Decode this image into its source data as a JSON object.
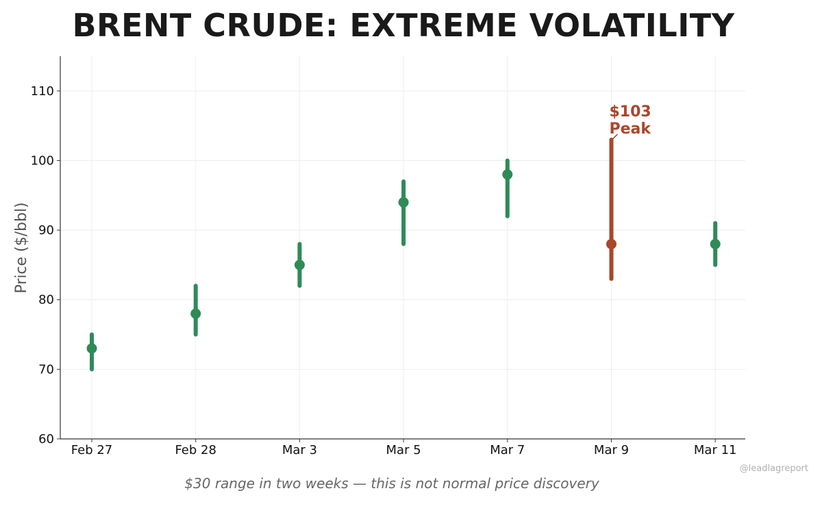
{
  "chart_data": {
    "type": "range-dot",
    "title": "BRENT CRUDE: EXTREME VOLATILITY",
    "ylabel": "Price ($/bbl)",
    "xlabel": "",
    "ylim": [
      60,
      115
    ],
    "yticks": [
      60,
      70,
      80,
      90,
      100,
      110
    ],
    "grid": true,
    "categories": [
      "Feb 27",
      "Feb 28",
      "Mar 3",
      "Mar 5",
      "Mar 7",
      "Mar 9",
      "Mar 11"
    ],
    "close": [
      73,
      78,
      85,
      94,
      98,
      88,
      88
    ],
    "low": [
      70,
      75,
      82,
      88,
      92,
      83,
      85
    ],
    "high": [
      75,
      82,
      88,
      97,
      100,
      103,
      91
    ],
    "highlight_index": 5,
    "colors": {
      "normal": "#2e8b57",
      "highlight": "#a9472a"
    },
    "annotation": {
      "index": 5,
      "value": 103,
      "line1": "$103",
      "line2": "Peak"
    }
  },
  "caption": "$30 range in two weeks — this is not normal price discovery",
  "watermark": "@leadlagreport"
}
